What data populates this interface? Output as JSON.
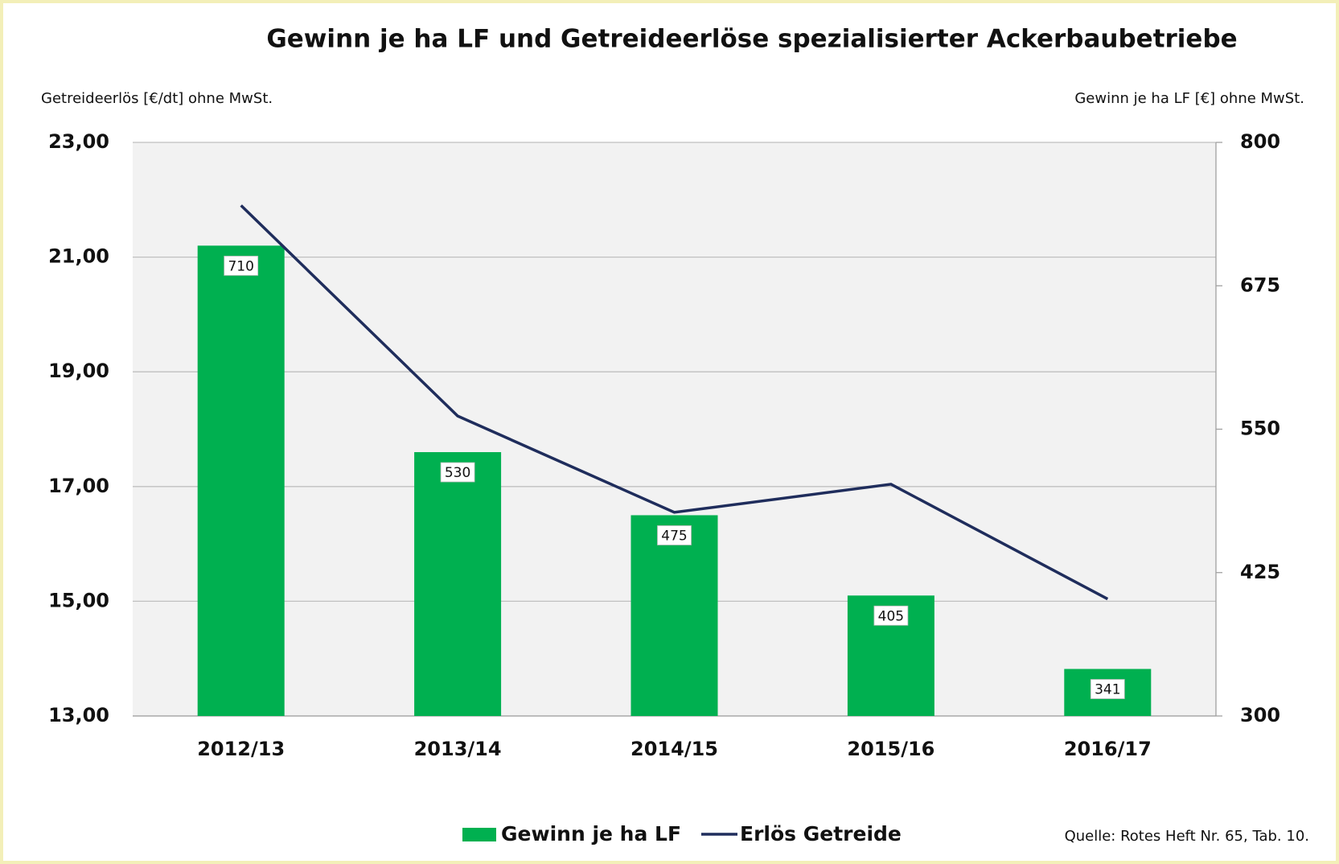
{
  "chart_data": {
    "type": "bar",
    "title": "Gewinn je ha LF und Getreideerlöse spezialisierter Ackerbaubetriebe",
    "ylabel": "Getreideerlös [€/dt] ohne MwSt.",
    "y2label": "Gewinn je ha LF [€] ohne MwSt.",
    "source": "Quelle: Rotes Heft Nr. 65, Tab. 10.",
    "categories": [
      "2012/13",
      "2013/14",
      "2014/15",
      "2015/16",
      "2016/17"
    ],
    "series": [
      {
        "name": "Gewinn je ha LF",
        "type": "bar",
        "axis": "y2",
        "color": "#00b050",
        "values": [
          710,
          530,
          475,
          405,
          341
        ]
      },
      {
        "name": "Erlös Getreide",
        "type": "line",
        "axis": "y",
        "color": "#1f2d5c",
        "values": [
          21.9,
          18.23,
          16.55,
          17.04,
          15.04
        ]
      }
    ],
    "ylim": [
      13,
      23
    ],
    "yticks": [
      {
        "value": 13,
        "label": "13,00"
      },
      {
        "value": 15,
        "label": "15,00"
      },
      {
        "value": 17,
        "label": "17,00"
      },
      {
        "value": 19,
        "label": "19,00"
      },
      {
        "value": 21,
        "label": "21,00"
      },
      {
        "value": 23,
        "label": "23,00"
      }
    ],
    "y2lim": [
      300,
      800
    ],
    "y2ticks": [
      300,
      425,
      550,
      675,
      800
    ],
    "grid": true
  }
}
